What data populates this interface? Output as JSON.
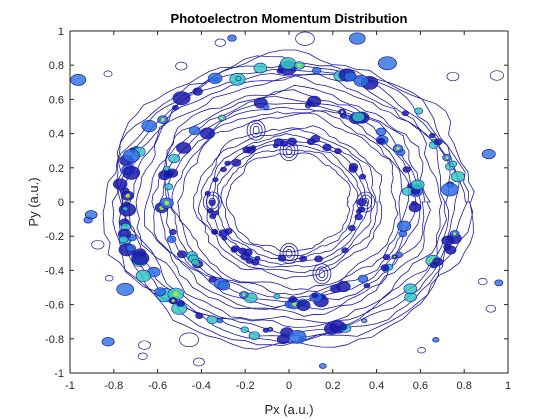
{
  "chart_data": {
    "type": "contour",
    "title": "Photoelectron Momentum Distribution",
    "xlabel": "Px (a.u.)",
    "ylabel": "Py (a.u.)",
    "xlim": [
      -1,
      1
    ],
    "ylim": [
      -1,
      1
    ],
    "xticks": [
      "-1",
      "-0.8",
      "-0.6",
      "-0.4",
      "-0.2",
      "0",
      "0.2",
      "0.4",
      "0.6",
      "0.8",
      "1"
    ],
    "yticks": [
      "1",
      "0.8",
      "0.6",
      "0.4",
      "0.2",
      "0",
      "-0.2",
      "-0.4",
      "-0.6",
      "-0.8",
      "-1"
    ],
    "rings": [
      {
        "radius": 0.78,
        "intensity": 1.0
      },
      {
        "radius": 0.58,
        "intensity": 0.75
      },
      {
        "radius": 0.36,
        "intensity": 0.35
      }
    ],
    "grid": false,
    "colors": {
      "contour_low": "#1a1aa8",
      "contour_mid": "#2a6fe0",
      "contour_high": "#34c8c0",
      "peak": "#a8e830",
      "axis": "#262626"
    }
  }
}
